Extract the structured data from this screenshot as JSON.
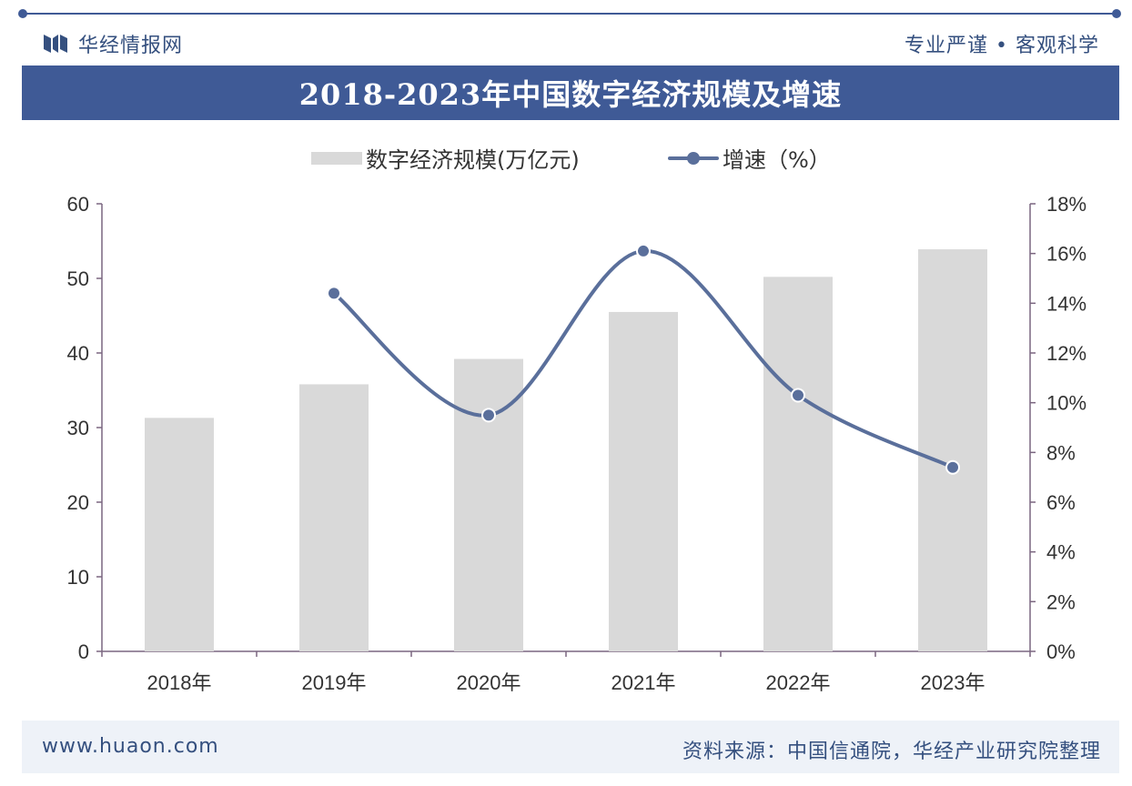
{
  "header": {
    "brand": "华经情报网",
    "slogan": "专业严谨 • 客观科学"
  },
  "chart_data": {
    "type": "bar",
    "title": "2018-2023年中国数字经济规模及增速",
    "categories": [
      "2018年",
      "2019年",
      "2020年",
      "2021年",
      "2022年",
      "2023年"
    ],
    "series": [
      {
        "name": "数字经济规模(万亿元)",
        "type": "bar",
        "axis": "left",
        "values": [
          31.3,
          35.8,
          39.2,
          45.5,
          50.2,
          53.9
        ]
      },
      {
        "name": "增速（%）",
        "type": "line",
        "axis": "right",
        "values": [
          null,
          14.4,
          9.5,
          16.1,
          10.3,
          7.4
        ]
      }
    ],
    "y_left": {
      "min": 0,
      "max": 60,
      "ticks": [
        "0",
        "10",
        "20",
        "30",
        "40",
        "50",
        "60"
      ]
    },
    "y_right": {
      "min": 0,
      "max": 18,
      "ticks": [
        "0%",
        "2%",
        "4%",
        "6%",
        "8%",
        "10%",
        "12%",
        "14%",
        "16%",
        "18%"
      ]
    },
    "grid": false,
    "legend": "top-center",
    "colors": {
      "bar": "#d9d9d9",
      "line": "#5a6f9b",
      "axis": "#7a6680"
    }
  },
  "footer": {
    "url": "www.huaon.com",
    "source": "资料来源：中国信通院，华经产业研究院整理"
  }
}
